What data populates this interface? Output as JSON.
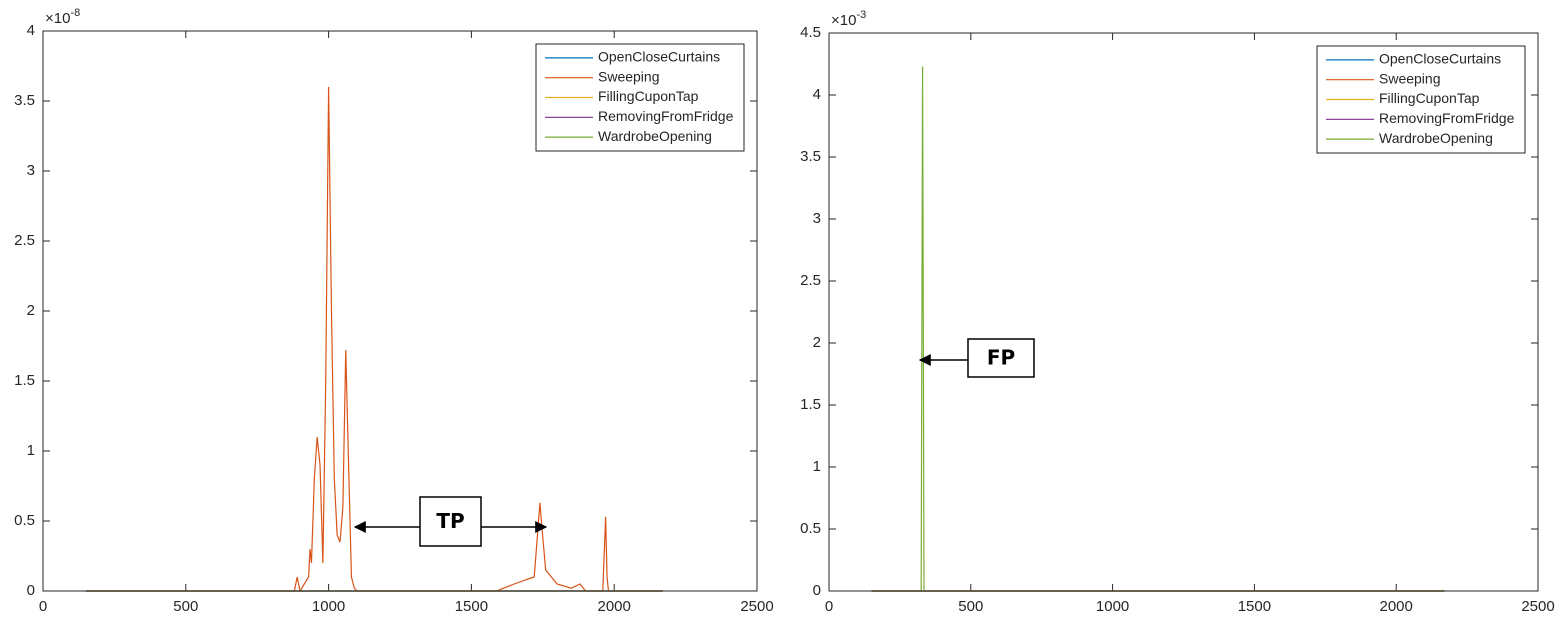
{
  "chart_data": [
    {
      "type": "line",
      "y_multiplier": {
        "base": "×10",
        "exp": "-8"
      },
      "xlim": [
        0,
        2500
      ],
      "xticks": [
        0,
        500,
        1000,
        1500,
        2000,
        2500
      ],
      "ylim": [
        0,
        4
      ],
      "yticks": [
        0,
        0.5,
        1,
        1.5,
        2,
        2.5,
        3,
        3.5,
        4
      ],
      "legend": "upper right",
      "annotations": [
        "TP"
      ],
      "series": [
        {
          "name": "OpenCloseCurtains",
          "color": "#0072bd",
          "x": [
            150,
            2170
          ],
          "values": [
            0,
            0
          ]
        },
        {
          "name": "Sweeping",
          "color": "#d95319",
          "x": [
            150,
            880,
            890,
            900,
            930,
            935,
            940,
            950,
            960,
            970,
            980,
            990,
            1000,
            1010,
            1020,
            1030,
            1040,
            1050,
            1060,
            1070,
            1080,
            1090,
            1100,
            1590,
            1600,
            1650,
            1690,
            1720,
            1740,
            1745,
            1760,
            1800,
            1850,
            1880,
            1900,
            1960,
            1970,
            1975,
            1980,
            2170
          ],
          "values": [
            0,
            0,
            0.1,
            0,
            0.1,
            0.3,
            0.2,
            0.8,
            1.1,
            0.9,
            0.2,
            1.5,
            3.6,
            2.0,
            0.8,
            0.4,
            0.35,
            0.6,
            1.72,
            0.9,
            0.1,
            0.02,
            0,
            0,
            0.01,
            0.05,
            0.08,
            0.1,
            0.63,
            0.5,
            0.15,
            0.05,
            0.02,
            0.05,
            0,
            0,
            0.53,
            0.1,
            0,
            0
          ]
        },
        {
          "name": "FillingCuponTap",
          "color": "#edb120",
          "x": [
            150,
            2170
          ],
          "values": [
            0,
            0
          ]
        },
        {
          "name": "RemovingFromFridge",
          "color": "#7e2f8e",
          "x": [
            150,
            2170
          ],
          "values": [
            0,
            0
          ]
        },
        {
          "name": "WardrobeOpening",
          "color": "#77ac30",
          "x": [
            150,
            2170
          ],
          "values": [
            0,
            0
          ]
        }
      ]
    },
    {
      "type": "line",
      "y_multiplier": {
        "base": "×10",
        "exp": "-3"
      },
      "xlim": [
        0,
        2500
      ],
      "xticks": [
        0,
        500,
        1000,
        1500,
        2000,
        2500
      ],
      "ylim": [
        0,
        4.5
      ],
      "yticks": [
        0,
        0.5,
        1,
        1.5,
        2,
        2.5,
        3,
        3.5,
        4,
        4.5
      ],
      "legend": "upper right",
      "annotations": [
        "FP"
      ],
      "series": [
        {
          "name": "OpenCloseCurtains",
          "color": "#0072bd",
          "x": [
            150,
            2170
          ],
          "values": [
            0,
            0
          ]
        },
        {
          "name": "Sweeping",
          "color": "#d95319",
          "x": [
            150,
            2170
          ],
          "values": [
            0,
            0
          ]
        },
        {
          "name": "FillingCuponTap",
          "color": "#edb120",
          "x": [
            150,
            2170
          ],
          "values": [
            0,
            0
          ]
        },
        {
          "name": "RemovingFromFridge",
          "color": "#7e2f8e",
          "x": [
            150,
            2170
          ],
          "values": [
            0,
            0
          ]
        },
        {
          "name": "WardrobeOpening",
          "color": "#77ac30",
          "x": [
            150,
            325,
            330,
            335,
            2170
          ],
          "values": [
            0,
            0,
            4.23,
            0,
            0
          ]
        }
      ]
    }
  ]
}
